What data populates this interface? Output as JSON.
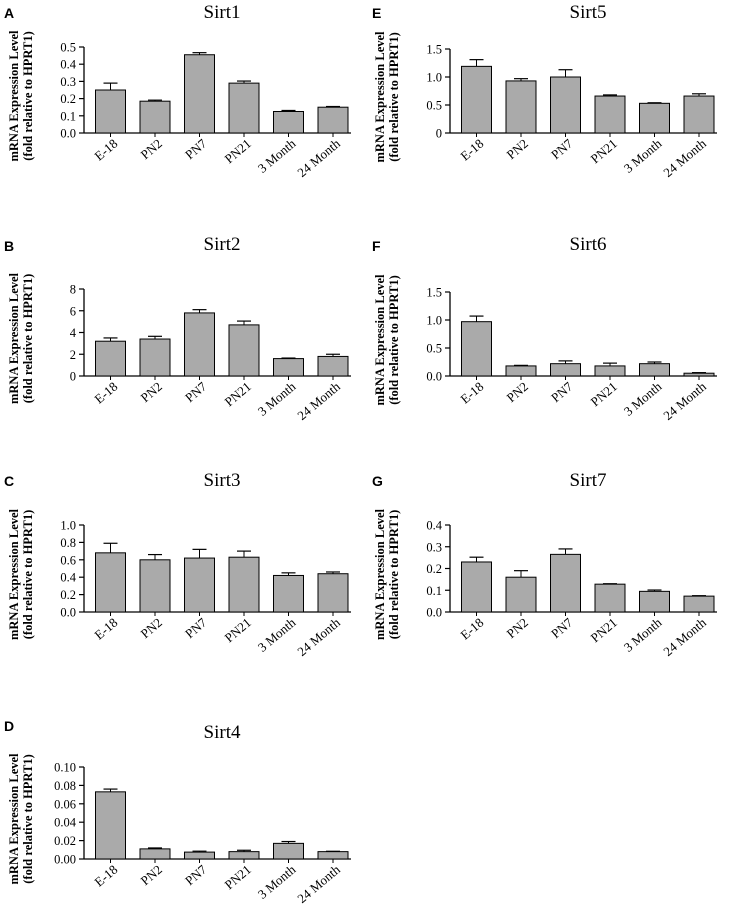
{
  "figure": {
    "background": "#ffffff",
    "bar_color": "#aaaaaa",
    "axis_color": "#000000"
  },
  "chart_data": [
    {
      "panel": "A",
      "type": "bar",
      "title": "Sirt1",
      "ylabel_line1": "mRNA Expression Level",
      "ylabel_line2": "(fold relative to HPRT1)",
      "categories": [
        "E-18",
        "PN2",
        "PN7",
        "PN21",
        "3 Month",
        "24 Month"
      ],
      "values": [
        0.25,
        0.185,
        0.455,
        0.29,
        0.125,
        0.15
      ],
      "errors": [
        0.04,
        0.006,
        0.012,
        0.012,
        0.006,
        0.004
      ],
      "ylim": [
        0,
        0.5
      ],
      "yticks": [
        "0.0",
        "0.1",
        "0.2",
        "0.3",
        "0.4",
        "0.5"
      ]
    },
    {
      "panel": "B",
      "type": "bar",
      "title": "Sirt2",
      "ylabel_line1": "mRNA Expression Level",
      "ylabel_line2": "(fold relative to HPRT1)",
      "categories": [
        "E-18",
        "PN2",
        "PN7",
        "PN21",
        "3 Month",
        "24 Month"
      ],
      "values": [
        3.2,
        3.4,
        5.8,
        4.7,
        1.6,
        1.8
      ],
      "errors": [
        0.3,
        0.25,
        0.3,
        0.35,
        0.05,
        0.2
      ],
      "ylim": [
        0,
        8
      ],
      "yticks": [
        "0",
        "2",
        "4",
        "6",
        "8"
      ]
    },
    {
      "panel": "C",
      "type": "bar",
      "title": "Sirt3",
      "ylabel_line1": "mRNA Expression Level",
      "ylabel_line2": "(fold relative to HPRT1)",
      "categories": [
        "E-18",
        "PN2",
        "PN7",
        "PN21",
        "3 Month",
        "24 Month"
      ],
      "values": [
        0.68,
        0.6,
        0.62,
        0.63,
        0.42,
        0.44
      ],
      "errors": [
        0.11,
        0.06,
        0.1,
        0.07,
        0.03,
        0.02
      ],
      "ylim": [
        0,
        1.0
      ],
      "yticks": [
        "0.0",
        "0.2",
        "0.4",
        "0.6",
        "0.8",
        "1.0"
      ]
    },
    {
      "panel": "D",
      "type": "bar",
      "title": "Sirt4",
      "ylabel_line1": "mRNA Expression Level",
      "ylabel_line2": "(fold relative to HPRT1)",
      "categories": [
        "E-18",
        "PN2",
        "PN7",
        "PN21",
        "3 Month",
        "24 Month"
      ],
      "values": [
        0.073,
        0.011,
        0.0075,
        0.008,
        0.017,
        0.008
      ],
      "errors": [
        0.003,
        0.001,
        0.001,
        0.0015,
        0.002,
        0.0004
      ],
      "ylim": [
        0,
        0.1
      ],
      "yticks": [
        "0.00",
        "0.02",
        "0.04",
        "0.06",
        "0.08",
        "0.10"
      ]
    },
    {
      "panel": "E",
      "type": "bar",
      "title": "Sirt5",
      "ylabel_line1": "mRNA Expression Level",
      "ylabel_line2": "(fold relative to HPRT1)",
      "categories": [
        "E-18",
        "PN2",
        "PN7",
        "PN21",
        "3 Month",
        "24 Month"
      ],
      "values": [
        1.19,
        0.93,
        1.0,
        0.66,
        0.53,
        0.66
      ],
      "errors": [
        0.12,
        0.04,
        0.13,
        0.02,
        0.01,
        0.04
      ],
      "ylim": [
        0,
        1.5
      ],
      "yticks": [
        "0",
        "0.5",
        "1.0",
        "1.5"
      ]
    },
    {
      "panel": "F",
      "type": "bar",
      "title": "Sirt6",
      "ylabel_line1": "mRNA Expression Level",
      "ylabel_line2": "(fold relative to HPRT1)",
      "categories": [
        "E-18",
        "PN2",
        "PN7",
        "PN21",
        "3 Month",
        "24 Month"
      ],
      "values": [
        0.97,
        0.18,
        0.22,
        0.18,
        0.22,
        0.05
      ],
      "errors": [
        0.1,
        0.01,
        0.05,
        0.05,
        0.03,
        0.01
      ],
      "ylim": [
        0,
        1.5
      ],
      "yticks": [
        "0.0",
        "0.5",
        "1.0",
        "1.5"
      ]
    },
    {
      "panel": "G",
      "type": "bar",
      "title": "Sirt7",
      "ylabel_line1": "mRNA Expression Level",
      "ylabel_line2": "(fold relative to HPRT1)",
      "categories": [
        "E-18",
        "PN2",
        "PN7",
        "PN21",
        "3 Month",
        "24 Month"
      ],
      "values": [
        0.23,
        0.16,
        0.265,
        0.128,
        0.095,
        0.073
      ],
      "errors": [
        0.022,
        0.03,
        0.025,
        0.002,
        0.006,
        0.002
      ],
      "ylim": [
        0,
        0.4
      ],
      "yticks": [
        "0.0",
        "0.1",
        "0.2",
        "0.3",
        "0.4"
      ]
    }
  ]
}
